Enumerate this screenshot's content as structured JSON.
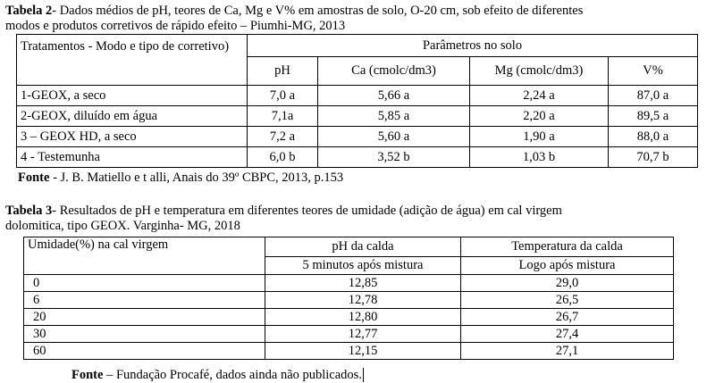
{
  "table2": {
    "caption_label": "Tabela 2",
    "caption_line1": "- Dados médios de pH, teores de Ca, Mg e V% em amostras de solo,  O-20 cm, sob efeito de diferentes",
    "caption_line2": "modos e produtos corretivos de rápido  efeito – Piumhi-MG, 2013",
    "header_treatment": "Tratamentos - Modo e tipo de corretivo)",
    "header_group": "Parâmetros no solo",
    "columns": [
      "pH",
      "Ca (cmolc/dm3)",
      "Mg (cmolc/dm3)",
      "V%"
    ],
    "rows": [
      [
        "1-GEOX, a seco",
        "7,0 a",
        "5,66 a",
        "2,24 a",
        "87,0 a"
      ],
      [
        "2-GEOX, diluído em água",
        "7,1a",
        "5,85 a",
        "2,20 a",
        "89,5 a"
      ],
      [
        "3 – GEOX HD, a seco",
        "7,2 a",
        "5,60 a",
        "1,90 a",
        "88,0 a"
      ],
      [
        "4 - Testemunha",
        "6,0 b",
        "3,52 b",
        "1,03 b",
        "70,7 b"
      ]
    ],
    "source_label": "Fonte",
    "source_text": " - J. B. Matiello e t alli, Anais do 39º CBPC, 2013, p.153"
  },
  "table3": {
    "caption_label": "Tabela 3",
    "caption_line1": "- Resultados de pH e temperatura em diferentes teores de umidade (adição de água) em cal virgem",
    "caption_line2": "dolomitica, tipo GEOX. Varginha- MG, 2018",
    "header_moisture": "Umidade(%) na cal virgem",
    "header_ph": "pH da calda",
    "header_ph_sub": "5 minutos após mistura",
    "header_temp": "Temperatura da calda",
    "header_temp_sub": "Logo após mistura",
    "rows": [
      [
        "0",
        "12,85",
        "29,0"
      ],
      [
        "6",
        "12,78",
        "26,5"
      ],
      [
        "20",
        "12,80",
        "26,7"
      ],
      [
        "30",
        "12,77",
        "27,4"
      ],
      [
        "60",
        "12,15",
        "27,1"
      ]
    ],
    "source_label": "Fonte",
    "source_text": " – Fundação Procafé, dados ainda não publicados."
  }
}
